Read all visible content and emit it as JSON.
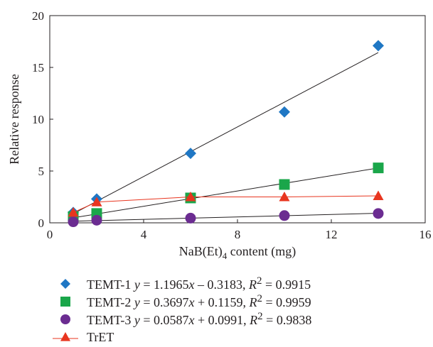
{
  "chart_data": {
    "type": "scatter",
    "title": "",
    "xlabel_main": "NaB(Et)",
    "xlabel_sub": "4",
    "xlabel_rest": " content (mg)",
    "ylabel": "Relative response",
    "xlim": [
      0,
      16
    ],
    "ylim": [
      0,
      20
    ],
    "xticks": [
      0,
      4,
      8,
      12,
      16
    ],
    "yticks": [
      0,
      5,
      10,
      15,
      20
    ],
    "grid": false,
    "legend_position": "below",
    "series": [
      {
        "name": "TEMT-1",
        "marker": "diamond",
        "color": "#1f77c4",
        "x": [
          1,
          2,
          6,
          10,
          14
        ],
        "y": [
          1.0,
          2.3,
          6.7,
          10.7,
          17.1
        ],
        "trendline": {
          "slope": 1.1965,
          "intercept": -0.3183,
          "color": "#231f20"
        },
        "equation": {
          "lhs": "y",
          "rhs_a": "1.1965",
          "rhs_var": "x",
          "rhs_b": "– 0.3183",
          "r2_label": "R",
          "r2_sup": "2",
          "r2_value": "0.9915"
        }
      },
      {
        "name": "TEMT-2",
        "marker": "square",
        "color": "#1aa64a",
        "x": [
          1,
          2,
          6,
          10,
          14
        ],
        "y": [
          0.6,
          0.9,
          2.4,
          3.7,
          5.3
        ],
        "trendline": {
          "slope": 0.3697,
          "intercept": 0.1159,
          "color": "#231f20"
        },
        "equation": {
          "lhs": "y",
          "rhs_a": "0.3697",
          "rhs_var": "x",
          "rhs_b": "+ 0.1159",
          "r2_label": "R",
          "r2_sup": "2",
          "r2_value": "0.9959"
        }
      },
      {
        "name": "TEMT-3",
        "marker": "circle",
        "color": "#6b2c91",
        "x": [
          1,
          2,
          6,
          10,
          14
        ],
        "y": [
          0.1,
          0.25,
          0.45,
          0.7,
          0.9
        ],
        "trendline": {
          "slope": 0.0587,
          "intercept": 0.0991,
          "color": "#231f20"
        },
        "equation": {
          "lhs": "y",
          "rhs_a": "0.0587",
          "rhs_var": "x",
          "rhs_b": "+ 0.0991",
          "r2_label": "R",
          "r2_sup": "2",
          "r2_value": "0.9838"
        }
      },
      {
        "name": "TrET",
        "marker": "triangle",
        "color": "#e8351f",
        "x": [
          1,
          2,
          6,
          10,
          14
        ],
        "y": [
          1.0,
          2.0,
          2.5,
          2.5,
          2.6
        ],
        "line": true
      }
    ]
  }
}
